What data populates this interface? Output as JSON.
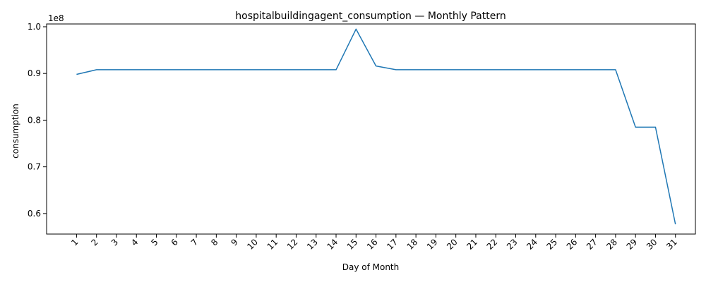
{
  "chart_data": {
    "type": "line",
    "title": "hospitalbuildingagent_consumption — Monthly Pattern",
    "xlabel": "Day of Month",
    "ylabel": "consumption",
    "y_multiplier_label": "1e8",
    "x": [
      1,
      2,
      3,
      4,
      5,
      6,
      7,
      8,
      9,
      10,
      11,
      12,
      13,
      14,
      15,
      16,
      17,
      18,
      19,
      20,
      21,
      22,
      23,
      24,
      25,
      26,
      27,
      28,
      29,
      30,
      31
    ],
    "series": [
      {
        "color": "#1f77b4",
        "values": [
          89800000,
          90800000,
          90800000,
          90800000,
          90800000,
          90800000,
          90800000,
          90800000,
          90800000,
          90800000,
          90800000,
          90800000,
          90800000,
          90800000,
          99500000,
          91600000,
          90800000,
          90800000,
          90800000,
          90800000,
          90800000,
          90800000,
          90800000,
          90800000,
          90800000,
          90800000,
          90800000,
          90800000,
          78500000,
          78500000,
          57700000
        ]
      }
    ],
    "xlim": [
      -0.5,
      32
    ],
    "ylim": [
      55600000,
      100600000
    ],
    "y_ticks": [
      60000000,
      70000000,
      80000000,
      90000000,
      100000000
    ],
    "y_tick_labels": [
      "0.6",
      "0.7",
      "0.8",
      "0.9",
      "1.0"
    ],
    "x_tick_labels": [
      "1",
      "2",
      "3",
      "4",
      "5",
      "6",
      "7",
      "8",
      "9",
      "10",
      "11",
      "12",
      "13",
      "14",
      "15",
      "16",
      "17",
      "18",
      "19",
      "20",
      "21",
      "22",
      "23",
      "24",
      "25",
      "26",
      "27",
      "28",
      "29",
      "30",
      "31"
    ],
    "grid": false,
    "legend": "none"
  }
}
